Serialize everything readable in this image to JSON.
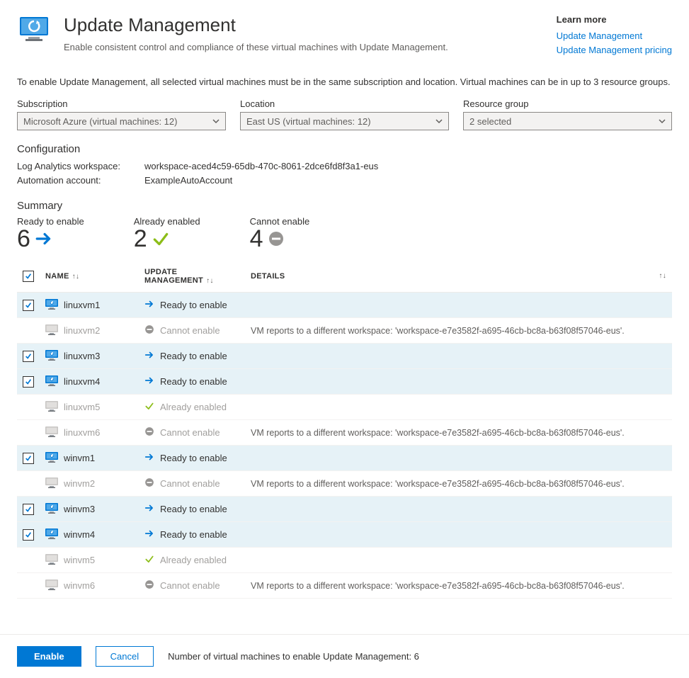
{
  "header": {
    "title": "Update Management",
    "subtitle": "Enable consistent control and compliance of these virtual machines with Update Management.",
    "learn_more_label": "Learn more",
    "link1": "Update Management",
    "link2": "Update Management pricing"
  },
  "info_text": "To enable Update Management, all selected virtual machines must be in the same subscription and location. Virtual machines can be in up to 3 resource groups.",
  "dropdowns": {
    "subscription": {
      "label": "Subscription",
      "value": "Microsoft Azure (virtual machines: 12)"
    },
    "location": {
      "label": "Location",
      "value": "East US (virtual machines: 12)"
    },
    "resource_group": {
      "label": "Resource group",
      "value": "2 selected"
    }
  },
  "config": {
    "title": "Configuration",
    "workspace_label": "Log Analytics workspace:",
    "workspace_value": "workspace-aced4c59-65db-470c-8061-2dce6fd8f3a1-eus",
    "automation_label": "Automation account:",
    "automation_value": "ExampleAutoAccount"
  },
  "summary": {
    "title": "Summary",
    "ready": {
      "label": "Ready to enable",
      "value": "6"
    },
    "already": {
      "label": "Already enabled",
      "value": "2"
    },
    "cannot": {
      "label": "Cannot enable",
      "value": "4"
    }
  },
  "table": {
    "col_name": "NAME",
    "col_status": "UPDATE MANAGEMENT",
    "col_details": "DETAILS",
    "details_msg": "VM reports to a different workspace: 'workspace-e7e3582f-a695-46cb-bc8a-b63f08f57046-eus'.",
    "status_ready": "Ready to enable",
    "status_cannot": "Cannot enable",
    "status_already": "Already enabled",
    "rows": [
      {
        "name": "linuxvm1",
        "status": "ready",
        "checked": true
      },
      {
        "name": "linuxvm2",
        "status": "cannot",
        "checked": false
      },
      {
        "name": "linuxvm3",
        "status": "ready",
        "checked": true
      },
      {
        "name": "linuxvm4",
        "status": "ready",
        "checked": true
      },
      {
        "name": "linuxvm5",
        "status": "already",
        "checked": false
      },
      {
        "name": "linuxvm6",
        "status": "cannot",
        "checked": false
      },
      {
        "name": "winvm1",
        "status": "ready",
        "checked": true
      },
      {
        "name": "winvm2",
        "status": "cannot",
        "checked": false
      },
      {
        "name": "winvm3",
        "status": "ready",
        "checked": true
      },
      {
        "name": "winvm4",
        "status": "ready",
        "checked": true
      },
      {
        "name": "winvm5",
        "status": "already",
        "checked": false
      },
      {
        "name": "winvm6",
        "status": "cannot",
        "checked": false
      }
    ]
  },
  "footer": {
    "enable_btn": "Enable",
    "cancel_btn": "Cancel",
    "text": "Number of virtual machines to enable Update Management: 6"
  },
  "colors": {
    "primary": "#0078d4",
    "green": "#8cbd18",
    "gray": "#979593",
    "row_selected": "#e6f2f7",
    "text": "#323130",
    "text_dim": "#a19f9d"
  }
}
